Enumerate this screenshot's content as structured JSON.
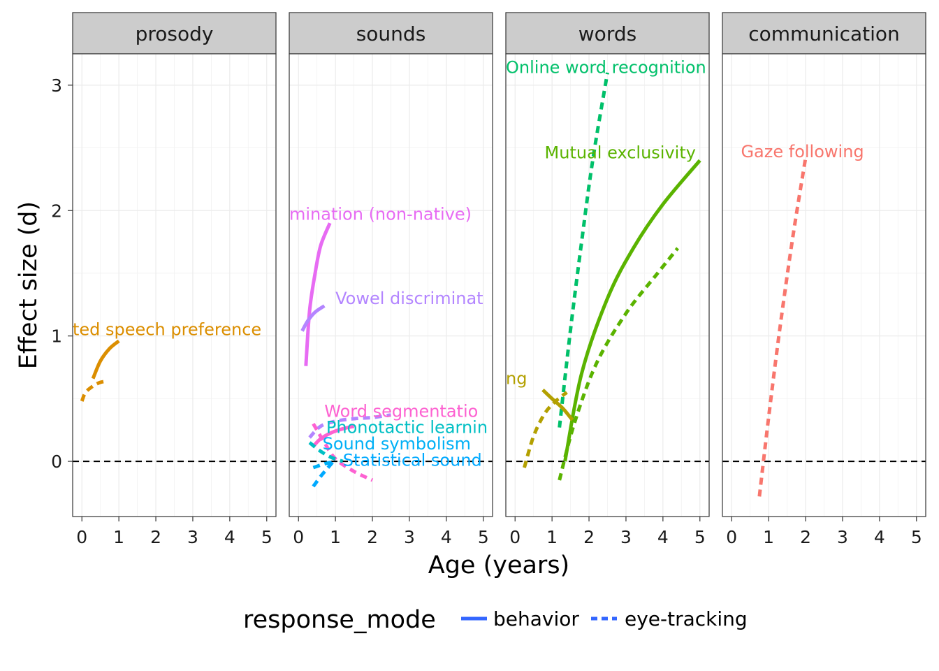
{
  "chart_data": {
    "type": "line",
    "xlabel": "Age (years)",
    "ylabel": "Effect size (d)",
    "xlim": [
      -0.25,
      5.25
    ],
    "ylim": [
      -0.44,
      3.25
    ],
    "xticks": [
      0,
      1,
      2,
      3,
      4,
      5
    ],
    "yticks": [
      0,
      1,
      2,
      3
    ],
    "reference_line": 0,
    "facets": [
      "prosody",
      "sounds",
      "words",
      "communication"
    ],
    "legend": {
      "title": "response_mode",
      "position": "bottom",
      "items": [
        {
          "label": "behavior",
          "linetype": "solid"
        },
        {
          "label": "eye-tracking",
          "linetype": "dashed"
        }
      ],
      "swatch_color": "#3366ff"
    },
    "series": [
      {
        "facet": "prosody",
        "label": "Infant directed speech preference",
        "label_visible": "ted speech preference",
        "color": "#db8e00",
        "mode": "behavior",
        "points": [
          [
            0.3,
            0.66
          ],
          [
            0.5,
            0.8
          ],
          [
            0.75,
            0.9
          ],
          [
            1.0,
            0.96
          ]
        ]
      },
      {
        "facet": "prosody",
        "label": "",
        "color": "#db8e00",
        "mode": "eye-tracking",
        "points": [
          [
            0.0,
            0.48
          ],
          [
            0.1,
            0.55
          ],
          [
            0.3,
            0.6
          ],
          [
            0.5,
            0.63
          ],
          [
            0.7,
            0.64
          ]
        ]
      },
      {
        "facet": "sounds",
        "label": "Native vowel discrimination (non-native)",
        "label_visible": "mination (non-native)",
        "color": "#e76bf3",
        "mode": "behavior",
        "points": [
          [
            0.2,
            0.76
          ],
          [
            0.3,
            1.2
          ],
          [
            0.45,
            1.5
          ],
          [
            0.6,
            1.72
          ],
          [
            0.85,
            1.9
          ]
        ]
      },
      {
        "facet": "sounds",
        "label": "Vowel discrimination",
        "label_visible": "Vowel discriminat",
        "color": "#b385ff",
        "mode": "behavior",
        "points": [
          [
            0.1,
            1.04
          ],
          [
            0.25,
            1.12
          ],
          [
            0.45,
            1.19
          ],
          [
            0.7,
            1.24
          ]
        ]
      },
      {
        "facet": "sounds",
        "label": "Vowel discrimination (eye-tracking)",
        "label_visible": "",
        "color": "#b385ff",
        "mode": "eye-tracking",
        "points": [
          [
            0.3,
            0.19
          ],
          [
            0.6,
            0.28
          ],
          [
            1.0,
            0.32
          ],
          [
            1.5,
            0.34
          ],
          [
            2.0,
            0.35
          ],
          [
            2.5,
            0.37
          ]
        ]
      },
      {
        "facet": "sounds",
        "label": "Word segmentation",
        "label_visible": "Word segmentatio",
        "color": "#fd61d1",
        "mode": "behavior",
        "points": [
          [
            0.4,
            0.12
          ],
          [
            0.6,
            0.18
          ],
          [
            0.9,
            0.23
          ],
          [
            1.2,
            0.26
          ],
          [
            1.5,
            0.28
          ]
        ]
      },
      {
        "facet": "sounds",
        "label": "Word segmentation (eye-tracking)",
        "label_visible": "",
        "color": "#fd61d1",
        "mode": "eye-tracking",
        "points": [
          [
            0.4,
            0.3
          ],
          [
            0.7,
            0.15
          ],
          [
            1.0,
            0.02
          ],
          [
            1.5,
            -0.08
          ],
          [
            2.0,
            -0.15
          ]
        ]
      },
      {
        "facet": "sounds",
        "label": "Phonotactic learning",
        "label_visible": "Phonotactic learnin",
        "color": "#00bfc4",
        "mode": "eye-tracking",
        "points": [
          [
            0.3,
            0.15
          ],
          [
            0.6,
            0.08
          ],
          [
            0.9,
            0.03
          ],
          [
            1.2,
            0.0
          ]
        ]
      },
      {
        "facet": "sounds",
        "label": "Sound symbolism",
        "label_visible": "Sound symbolism",
        "color": "#00b0f6",
        "mode": "eye-tracking",
        "points": [
          [
            0.4,
            -0.05
          ],
          [
            0.7,
            -0.02
          ],
          [
            1.0,
            0.0
          ]
        ]
      },
      {
        "facet": "sounds",
        "label": "Statistical sound category learning",
        "label_visible": "Statistical sound",
        "color": "#00a9ff",
        "mode": "eye-tracking",
        "points": [
          [
            0.4,
            -0.2
          ],
          [
            0.6,
            -0.12
          ],
          [
            0.8,
            -0.05
          ],
          [
            1.0,
            0.02
          ]
        ]
      },
      {
        "facet": "words",
        "label": "Online word recognition",
        "label_visible": "Online word recognition",
        "color": "#00c06a",
        "mode": "eye-tracking",
        "points": [
          [
            1.2,
            0.27
          ],
          [
            1.5,
            1.05
          ],
          [
            1.8,
            1.75
          ],
          [
            2.1,
            2.4
          ],
          [
            2.5,
            3.1
          ]
        ]
      },
      {
        "facet": "words",
        "label": "Mutual exclusivity",
        "label_visible": "Mutual exclusivity",
        "color": "#5ab300",
        "mode": "behavior",
        "points": [
          [
            1.35,
            0.0
          ],
          [
            1.8,
            0.7
          ],
          [
            2.5,
            1.3
          ],
          [
            3.2,
            1.7
          ],
          [
            4.0,
            2.05
          ],
          [
            5.0,
            2.4
          ]
        ]
      },
      {
        "facet": "words",
        "label": "Mutual exclusivity (eye-tracking)",
        "label_visible": "",
        "color": "#5ab300",
        "mode": "eye-tracking",
        "points": [
          [
            1.2,
            -0.15
          ],
          [
            1.6,
            0.3
          ],
          [
            2.2,
            0.78
          ],
          [
            3.0,
            1.18
          ],
          [
            3.8,
            1.48
          ],
          [
            4.4,
            1.7
          ]
        ]
      },
      {
        "facet": "words",
        "label": "Word learning",
        "label_visible": "ng",
        "color": "#b3a000",
        "mode": "behavior",
        "points": [
          [
            0.75,
            0.57
          ],
          [
            1.0,
            0.5
          ],
          [
            1.3,
            0.42
          ],
          [
            1.55,
            0.33
          ]
        ]
      },
      {
        "facet": "words",
        "label": "Word learning (eye-tracking)",
        "label_visible": "",
        "color": "#b3a000",
        "mode": "eye-tracking",
        "points": [
          [
            0.25,
            -0.05
          ],
          [
            0.5,
            0.2
          ],
          [
            0.8,
            0.38
          ],
          [
            1.1,
            0.48
          ],
          [
            1.4,
            0.55
          ]
        ]
      },
      {
        "facet": "communication",
        "label": "Gaze following",
        "label_visible": "Gaze following",
        "color": "#f8766d",
        "mode": "eye-tracking",
        "points": [
          [
            0.75,
            -0.28
          ],
          [
            1.0,
            0.35
          ],
          [
            1.3,
            1.05
          ],
          [
            1.65,
            1.78
          ],
          [
            2.0,
            2.42
          ]
        ]
      }
    ]
  }
}
